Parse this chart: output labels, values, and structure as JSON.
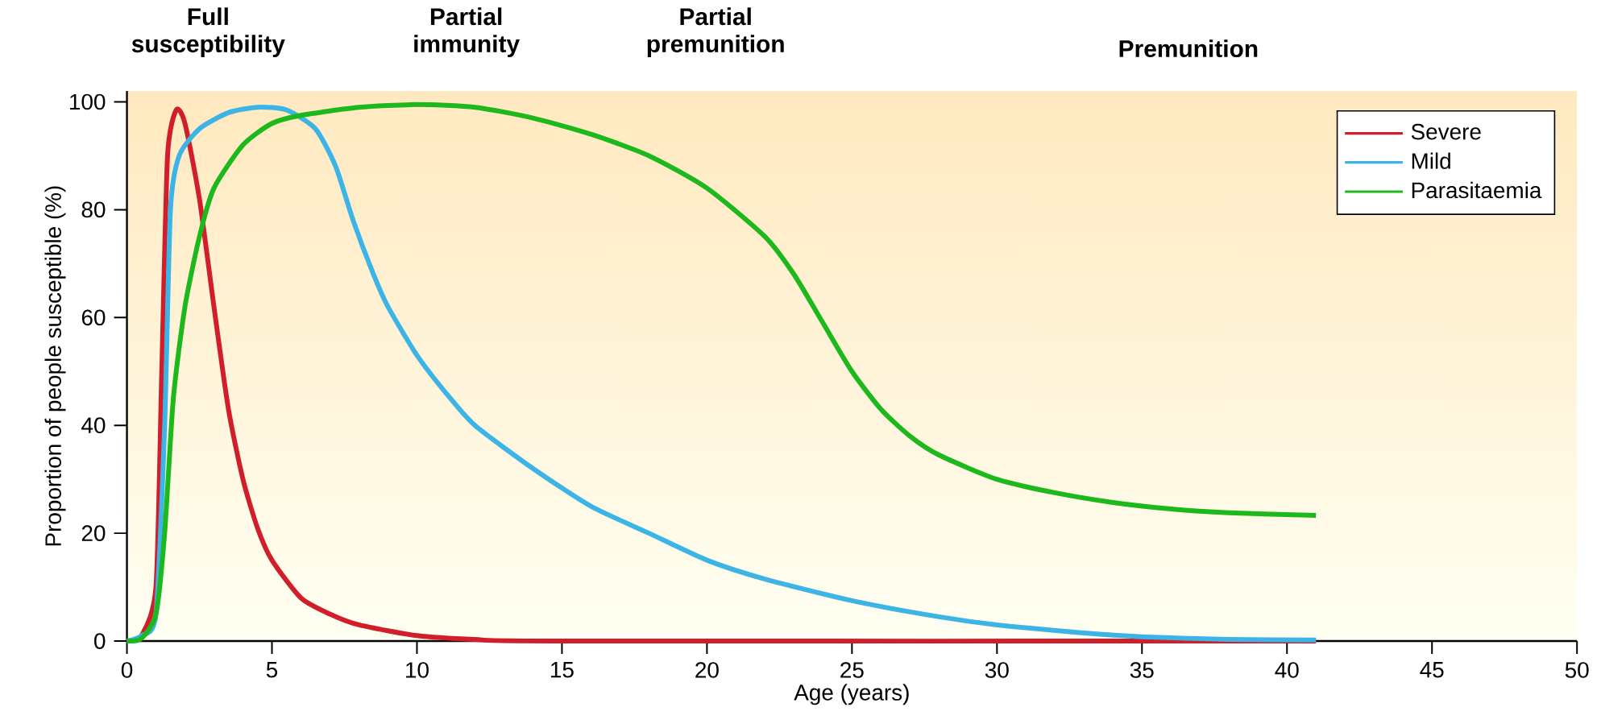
{
  "chart_data": {
    "type": "line",
    "xlabel": "Age (years)",
    "ylabel": "Proportion of people susceptible (%)",
    "annotations": [
      "Full susceptibility",
      "Partial immunity",
      "Partial premunition",
      "Premunition"
    ],
    "xlim": [
      0,
      50
    ],
    "ylim": [
      0,
      102
    ],
    "xticks": [
      0,
      5,
      10,
      15,
      20,
      25,
      30,
      35,
      40,
      45,
      50
    ],
    "yticks": [
      0,
      20,
      40,
      60,
      80,
      100
    ],
    "legend": "top right",
    "grid": false,
    "marker": "none",
    "line_style": "solid",
    "series": [
      {
        "name": "Severe",
        "color": "#d01f2a",
        "x": [
          0,
          0.5,
          1,
          1.2,
          1.4,
          1.7,
          2,
          2.5,
          3,
          3.5,
          4,
          4.5,
          5,
          6,
          7,
          8,
          10,
          12,
          15,
          41
        ],
        "values": [
          0,
          1,
          10,
          50,
          90,
          98.5,
          96,
          82,
          62,
          43,
          30,
          21,
          15,
          8,
          5,
          3,
          1,
          0.3,
          0,
          0
        ]
      },
      {
        "name": "Mild",
        "color": "#3cb4e6",
        "x": [
          0,
          0.5,
          1,
          1.3,
          1.5,
          1.8,
          2.5,
          3.5,
          4.5,
          5.5,
          6.5,
          7.2,
          7.8,
          8.5,
          9,
          10,
          11,
          12,
          14,
          16,
          18,
          20,
          22,
          25,
          28,
          30,
          33,
          35,
          38,
          41
        ],
        "values": [
          0,
          1,
          5,
          40,
          80,
          90,
          95,
          98,
          99,
          98.5,
          95,
          88,
          78,
          68,
          62,
          53,
          46,
          40,
          32,
          25,
          20,
          15,
          11.5,
          7.5,
          4.5,
          3,
          1.5,
          0.8,
          0.3,
          0.2
        ]
      },
      {
        "name": "Parasitaemia",
        "color": "#1cb81c",
        "x": [
          0,
          0.5,
          1,
          1.3,
          1.6,
          2,
          2.5,
          3,
          4,
          5,
          6,
          8,
          10,
          12,
          14,
          16,
          18,
          20,
          22,
          23,
          24,
          25,
          26,
          27,
          28,
          30,
          32,
          34,
          36,
          38,
          41
        ],
        "values": [
          0,
          0.5,
          5,
          20,
          45,
          62,
          75,
          84,
          92,
          96,
          97.5,
          99,
          99.5,
          99,
          97,
          94,
          90,
          84,
          75,
          68,
          59,
          50,
          43,
          38,
          34.5,
          30,
          27.5,
          25.7,
          24.5,
          23.8,
          23.3
        ]
      }
    ]
  }
}
